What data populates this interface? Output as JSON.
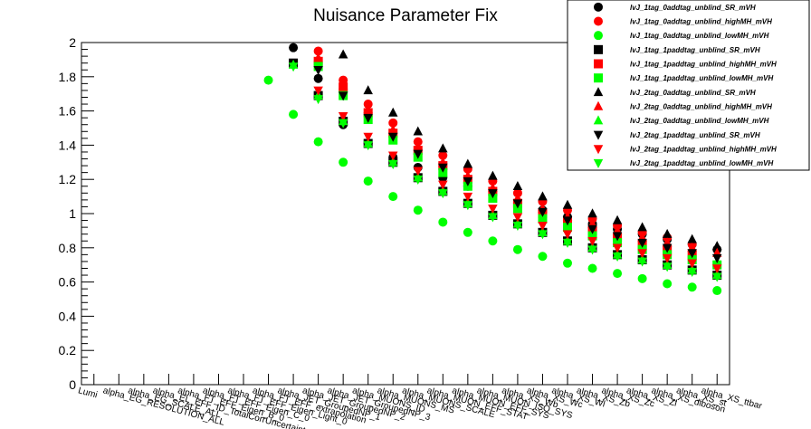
{
  "chart_data": {
    "type": "scatter",
    "title": "Nuisance Parameter Fix",
    "xlabel": "",
    "ylabel": "",
    "ylim": [
      0,
      2
    ],
    "yticks": [
      "0",
      "0.2",
      "0.4",
      "0.6",
      "0.8",
      "1",
      "1.2",
      "1.4",
      "1.6",
      "1.8",
      "2"
    ],
    "grid": false,
    "legend_position": "top-right",
    "categories": [
      "Lumi",
      "alpha_EG_RESOLUTION_ALL",
      "alpha_EG_SCALE_ALL",
      "alpha_EL_EFF_ID_TotalCorrUncertainty",
      "alpha_FT_EFF_Eigen_B_0",
      "alpha_FT_EFF_Eigen_C_0",
      "alpha_FT_EFF_Eigen_Light_0",
      "alpha_FT_EFF_extrapolation",
      "alpha_JET_GroupedNP_1",
      "alpha_JET_GroupedNP_2",
      "alpha_JET_GroupedNP_3",
      "alpha_MUONS_ID",
      "alpha_MUONS_MS",
      "alpha_MUONS_SCALE",
      "alpha_MUON_EFF_STAT",
      "alpha_MUON_EFF_SYS",
      "alpha_MUON_ISO_SYS",
      "alpha_XS_Wb",
      "alpha_XS_Wc",
      "alpha_XS_Wl",
      "alpha_XS_Zb",
      "alpha_XS_Zc",
      "alpha_XS_Zl",
      "alpha_XS_diboson",
      "alpha_XS_st",
      "alpha_XS_ttbar"
    ],
    "series": [
      {
        "name": "lvJ_1tag_0addtag_unblind_SR_mVH",
        "marker": "circle",
        "color": "#000000",
        "values": [
          null,
          null,
          null,
          null,
          null,
          null,
          null,
          null,
          1.97,
          1.79,
          1.52,
          1.41,
          1.33,
          1.27,
          1.21,
          1.16,
          1.11,
          1.06,
          1.02,
          0.98,
          0.94,
          0.91,
          0.88,
          0.85,
          0.82,
          0.79
        ]
      },
      {
        "name": "lvJ_1tag_0addtag_unblind_highMH_mVH",
        "marker": "circle",
        "color": "#ff0000",
        "values": [
          null,
          null,
          null,
          null,
          null,
          null,
          null,
          null,
          null,
          1.95,
          1.78,
          1.64,
          1.53,
          1.42,
          1.34,
          1.26,
          1.19,
          1.12,
          1.07,
          1.02,
          0.97,
          0.93,
          0.89,
          0.86,
          0.82,
          null
        ]
      },
      {
        "name": "lvJ_1tag_0addtag_unblind_lowMH_mVH",
        "marker": "circle",
        "color": "#00ff00",
        "values": [
          null,
          null,
          null,
          null,
          null,
          null,
          null,
          1.78,
          1.58,
          1.42,
          1.3,
          1.19,
          1.1,
          1.02,
          0.95,
          0.89,
          0.84,
          0.79,
          0.75,
          0.71,
          0.68,
          0.65,
          0.62,
          0.59,
          0.57,
          0.55
        ]
      },
      {
        "name": "lvJ_1tag_1paddtag_unblind_SR_mVH",
        "marker": "square",
        "color": "#000000",
        "values": [
          null,
          null,
          null,
          null,
          null,
          null,
          null,
          null,
          1.88,
          1.69,
          1.54,
          1.41,
          1.3,
          1.21,
          1.13,
          1.06,
          0.99,
          0.94,
          0.89,
          0.84,
          0.8,
          0.76,
          0.73,
          0.7,
          0.67,
          0.64
        ]
      },
      {
        "name": "lvJ_1tag_1paddtag_unblind_highMH_mVH",
        "marker": "square",
        "color": "#ff0000",
        "values": [
          null,
          null,
          null,
          null,
          null,
          null,
          null,
          null,
          null,
          1.89,
          1.74,
          1.59,
          1.47,
          1.37,
          1.28,
          1.2,
          1.13,
          1.06,
          1.0,
          0.95,
          0.9,
          0.86,
          0.82,
          0.79,
          0.76,
          null
        ]
      },
      {
        "name": "lvJ_1tag_1paddtag_unblind_lowMH_mVH",
        "marker": "square",
        "color": "#00ff00",
        "values": [
          null,
          null,
          null,
          null,
          null,
          null,
          null,
          null,
          null,
          1.86,
          1.69,
          1.55,
          1.43,
          1.33,
          1.24,
          1.16,
          1.09,
          1.03,
          0.97,
          0.92,
          0.87,
          0.83,
          0.79,
          0.76,
          0.73,
          0.7
        ]
      },
      {
        "name": "lvJ_2tag_0addtag_unblind_SR_mVH",
        "marker": "triangle-up",
        "color": "#000000",
        "values": [
          null,
          null,
          null,
          null,
          null,
          null,
          null,
          null,
          null,
          null,
          1.93,
          1.72,
          1.59,
          1.48,
          1.38,
          1.29,
          1.22,
          1.16,
          1.1,
          1.05,
          1.0,
          0.96,
          0.92,
          0.88,
          0.85,
          0.81
        ]
      },
      {
        "name": "lvJ_2tag_0addtag_unblind_highMH_mVH",
        "marker": "triangle-up",
        "color": "#ff0000",
        "values": [
          null,
          null,
          null,
          null,
          null,
          null,
          null,
          null,
          null,
          1.91,
          1.75,
          1.61,
          1.49,
          1.39,
          1.3,
          1.22,
          1.15,
          1.09,
          1.03,
          0.98,
          0.94,
          0.9,
          0.86,
          0.83,
          0.8,
          0.77
        ]
      },
      {
        "name": "lvJ_2tag_0addtag_unblind_lowMH_mVH",
        "marker": "triangle-up",
        "color": "#00ff00",
        "values": [
          null,
          null,
          null,
          null,
          null,
          null,
          null,
          null,
          1.87,
          1.69,
          1.54,
          1.41,
          1.3,
          1.21,
          1.13,
          1.06,
          0.99,
          0.94,
          0.89,
          0.84,
          0.8,
          0.76,
          0.73,
          0.7,
          0.67,
          0.64
        ]
      },
      {
        "name": "lvJ_2tag_1paddtag_unblind_SR_mVH",
        "marker": "triangle-down",
        "color": "#000000",
        "values": [
          null,
          null,
          null,
          null,
          null,
          null,
          null,
          null,
          null,
          1.84,
          1.69,
          1.56,
          1.45,
          1.35,
          1.27,
          1.19,
          1.12,
          1.06,
          1.01,
          0.96,
          0.91,
          0.87,
          0.83,
          0.8,
          0.77,
          0.74
        ]
      },
      {
        "name": "lvJ_2tag_1paddtag_unblind_highMH_mVH",
        "marker": "triangle-down",
        "color": "#ff0000",
        "values": [
          null,
          null,
          null,
          null,
          null,
          null,
          null,
          null,
          null,
          1.72,
          1.57,
          1.45,
          1.34,
          1.25,
          1.17,
          1.1,
          1.03,
          0.98,
          0.93,
          0.88,
          0.84,
          0.8,
          0.77,
          0.74,
          0.71,
          0.68
        ]
      },
      {
        "name": "lvJ_2tag_1paddtag_unblind_lowMH_mVH",
        "marker": "triangle-down",
        "color": "#00ff00",
        "values": [
          null,
          null,
          null,
          null,
          null,
          null,
          null,
          null,
          1.86,
          1.67,
          1.53,
          1.4,
          1.29,
          1.2,
          1.12,
          1.05,
          0.98,
          0.93,
          0.88,
          0.83,
          0.79,
          0.75,
          0.72,
          0.69,
          0.66,
          0.63
        ]
      }
    ]
  }
}
